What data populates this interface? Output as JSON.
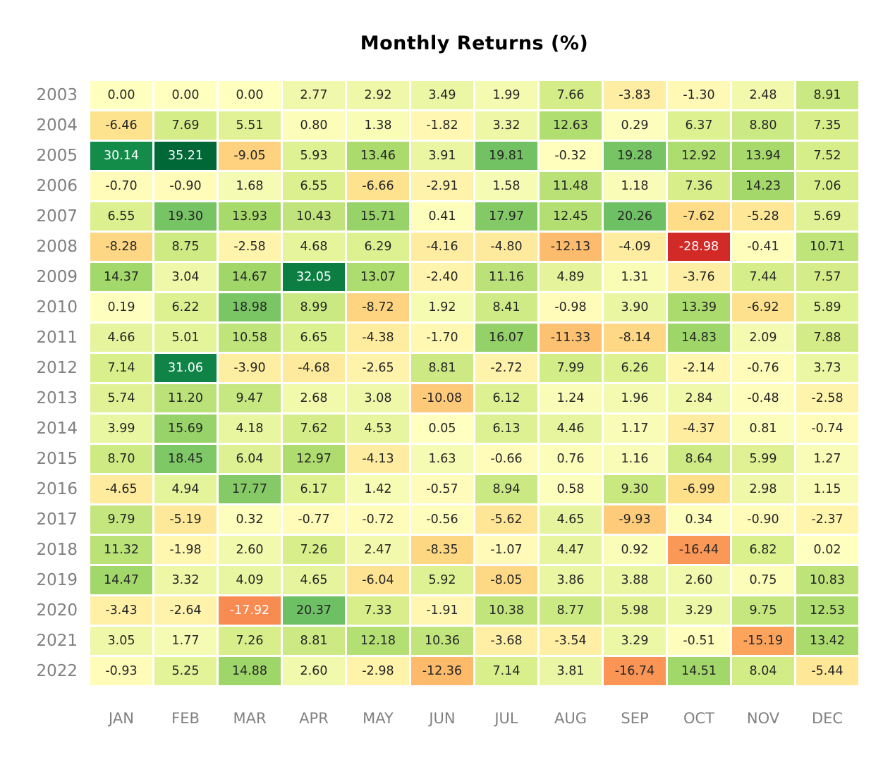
{
  "chart_data": {
    "type": "heatmap",
    "title": "Monthly Returns (%)",
    "columns": [
      "JAN",
      "FEB",
      "MAR",
      "APR",
      "MAY",
      "JUN",
      "JUL",
      "AUG",
      "SEP",
      "OCT",
      "NOV",
      "DEC"
    ],
    "rows": [
      "2003",
      "2004",
      "2005",
      "2006",
      "2007",
      "2008",
      "2009",
      "2010",
      "2011",
      "2012",
      "2013",
      "2014",
      "2015",
      "2016",
      "2017",
      "2018",
      "2019",
      "2020",
      "2021",
      "2022"
    ],
    "values": [
      [
        0.0,
        0.0,
        0.0,
        2.77,
        2.92,
        3.49,
        1.99,
        7.66,
        -3.83,
        -1.3,
        2.48,
        8.91
      ],
      [
        -6.46,
        7.69,
        5.51,
        0.8,
        1.38,
        -1.82,
        3.32,
        12.63,
        0.29,
        6.37,
        8.8,
        7.35
      ],
      [
        30.14,
        35.21,
        -9.05,
        5.93,
        13.46,
        3.91,
        19.81,
        -0.32,
        19.28,
        12.92,
        13.94,
        7.52
      ],
      [
        -0.7,
        -0.9,
        1.68,
        6.55,
        -6.66,
        -2.91,
        1.58,
        11.48,
        1.18,
        7.36,
        14.23,
        7.06
      ],
      [
        6.55,
        19.3,
        13.93,
        10.43,
        15.71,
        0.41,
        17.97,
        12.45,
        20.26,
        -7.62,
        -5.28,
        5.69
      ],
      [
        -8.28,
        8.75,
        -2.58,
        4.68,
        6.29,
        -4.16,
        -4.8,
        -12.13,
        -4.09,
        -28.98,
        -0.41,
        10.71
      ],
      [
        14.37,
        3.04,
        14.67,
        32.05,
        13.07,
        -2.4,
        11.16,
        4.89,
        1.31,
        -3.76,
        7.44,
        7.57
      ],
      [
        0.19,
        6.22,
        18.98,
        8.99,
        -8.72,
        1.92,
        8.41,
        -0.98,
        3.9,
        13.39,
        -6.92,
        5.89
      ],
      [
        4.66,
        5.01,
        10.58,
        6.65,
        -4.38,
        -1.7,
        16.07,
        -11.33,
        -8.14,
        14.83,
        2.09,
        7.88
      ],
      [
        7.14,
        31.06,
        -3.9,
        -4.68,
        -2.65,
        8.81,
        -2.72,
        7.99,
        6.26,
        -2.14,
        -0.76,
        3.73
      ],
      [
        5.74,
        11.2,
        9.47,
        2.68,
        3.08,
        -10.08,
        6.12,
        1.24,
        1.96,
        2.84,
        -0.48,
        -2.58
      ],
      [
        3.99,
        15.69,
        4.18,
        7.62,
        4.53,
        0.05,
        6.13,
        4.46,
        1.17,
        -4.37,
        0.81,
        -0.74
      ],
      [
        8.7,
        18.45,
        6.04,
        12.97,
        -4.13,
        1.63,
        -0.66,
        0.76,
        1.16,
        8.64,
        5.99,
        1.27
      ],
      [
        -4.65,
        4.94,
        17.77,
        6.17,
        1.42,
        -0.57,
        8.94,
        0.58,
        9.3,
        -6.99,
        2.98,
        1.15
      ],
      [
        9.79,
        -5.19,
        0.32,
        -0.77,
        -0.72,
        -0.56,
        -5.62,
        4.65,
        -9.93,
        0.34,
        -0.9,
        -2.37
      ],
      [
        11.32,
        -1.98,
        2.6,
        7.26,
        2.47,
        -8.35,
        -1.07,
        4.47,
        0.92,
        -16.44,
        6.82,
        0.02
      ],
      [
        14.47,
        3.32,
        4.09,
        4.65,
        -6.04,
        5.92,
        -8.05,
        3.86,
        3.88,
        2.6,
        0.75,
        10.83
      ],
      [
        -3.43,
        -2.64,
        -17.92,
        20.37,
        7.33,
        -1.91,
        10.38,
        8.77,
        5.98,
        3.29,
        9.75,
        12.53
      ],
      [
        3.05,
        1.77,
        7.26,
        8.81,
        12.18,
        10.36,
        -3.68,
        -3.54,
        3.29,
        -0.51,
        -15.19,
        13.42
      ],
      [
        -0.93,
        5.25,
        14.88,
        2.6,
        -2.98,
        -12.36,
        7.14,
        3.81,
        -16.74,
        14.51,
        8.04,
        -5.44
      ]
    ],
    "value_decimals": 2,
    "colormap": "RdYlGn",
    "colormap_anchors": [
      "#a50026",
      "#d73027",
      "#f46d43",
      "#fdae61",
      "#fee08b",
      "#ffffbf",
      "#d9ef8b",
      "#a6d96a",
      "#66bd63",
      "#1a9850",
      "#006837"
    ],
    "vmin": -35.21,
    "vmax": 35.21,
    "white_text_norm_below": 0.25,
    "white_text_norm_above": 0.9,
    "cell_text_color_dark": "#262626",
    "cell_text_color_light": "#ffffff",
    "axis_label_color": "#808080",
    "title_color": "#000000",
    "background_color": "#ffffff",
    "grid_gap_color": "#ffffff",
    "legend": "none"
  }
}
